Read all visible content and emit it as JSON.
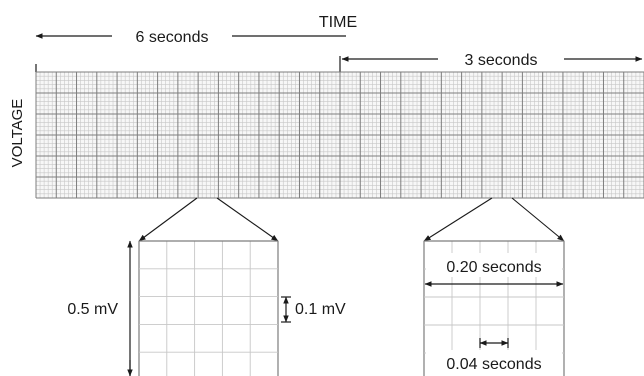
{
  "labels": {
    "time": "TIME",
    "voltage": "VOLTAGE",
    "six_seconds": "6 seconds",
    "three_seconds": "3 seconds",
    "big_square_voltage": "0.5 mV",
    "small_square_voltage": "0.1 mV",
    "big_square_time": "0.20 seconds",
    "small_square_time": "0.04 seconds"
  },
  "colors": {
    "grid_fine": "#c7c7c7",
    "grid_bold": "#7d7d7d",
    "ink": "#1a1a1a"
  }
}
